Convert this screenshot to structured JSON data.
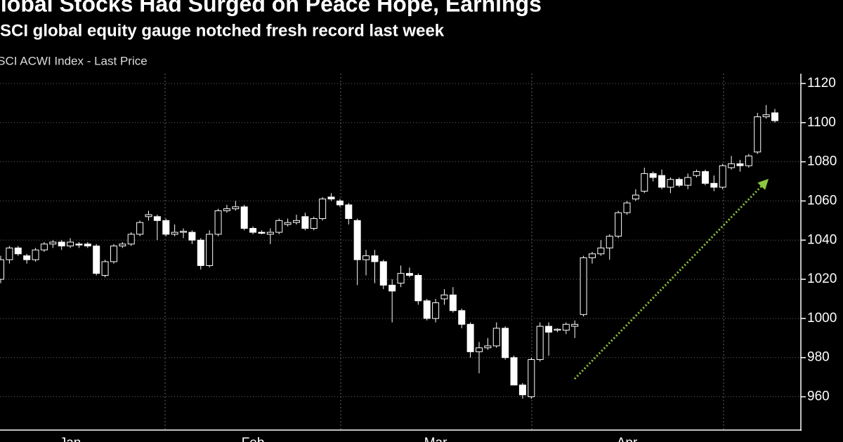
{
  "chart_data": {
    "type": "candlestick",
    "title": "Global Stocks Had Surged on Peace Hope, Earnings",
    "subtitle": "MSCI global equity gauge notched fresh record last week",
    "series_name": "MSCI ACWI Index - Last Price",
    "color": "#ffffff",
    "categories": [
      null,
      null,
      null,
      null,
      null,
      null,
      null,
      null,
      "Jan",
      null,
      null,
      null,
      null,
      null,
      null,
      null,
      null,
      null,
      null,
      null,
      null,
      null,
      null,
      null,
      null,
      null,
      null,
      null,
      null,
      "Feb",
      null,
      null,
      null,
      null,
      null,
      null,
      null,
      null,
      null,
      null,
      null,
      null,
      null,
      null,
      null,
      null,
      null,
      null,
      null,
      null,
      "Mar",
      null,
      null,
      null,
      null,
      null,
      null,
      null,
      null,
      null,
      null,
      null,
      null,
      null,
      null,
      null,
      null,
      null,
      null,
      null,
      null,
      null,
      "Apr",
      null,
      null,
      null,
      null,
      null,
      null,
      null,
      null,
      null,
      null,
      null,
      null,
      null,
      null,
      null,
      null,
      null
    ],
    "open": [
      1020,
      1030,
      1036,
      1032,
      1030,
      1035,
      1038,
      1039,
      1037,
      1038,
      1038,
      1037,
      1022,
      1029,
      1037,
      1038,
      1043,
      1052,
      1052,
      1050,
      1043,
      1044,
      1044,
      1040,
      1027,
      1043,
      1055,
      1056,
      1057,
      1046,
      1044,
      1043,
      1044,
      1048,
      1049,
      1052,
      1046,
      1051,
      1062,
      1060,
      1058,
      1050,
      1030,
      1032,
      1029,
      1017,
      1018,
      1023,
      1022,
      1009,
      1000,
      1010,
      1012,
      1004,
      997,
      983,
      985,
      986,
      995,
      980,
      966,
      960,
      979,
      996,
      994,
      994,
      996,
      1002,
      1031,
      1033,
      1036,
      1042,
      1054,
      1061,
      1065,
      1074,
      1073,
      1067,
      1071,
      1068,
      1073,
      1075,
      1069,
      1067,
      1077,
      1079,
      1078,
      1085,
      1103,
      1105
    ],
    "high": [
      1032,
      1037,
      1037,
      1033,
      1036,
      1039,
      1040,
      1040,
      1041,
      1039,
      1039,
      1038,
      1030,
      1038,
      1039,
      1044,
      1050,
      1055,
      1053,
      1051,
      1048,
      1046,
      1045,
      1041,
      1045,
      1056,
      1058,
      1060,
      1058,
      1047,
      1045,
      1046,
      1051,
      1051,
      1053,
      1054,
      1052,
      1062,
      1064,
      1061,
      1059,
      1051,
      1035,
      1035,
      1030,
      1020,
      1027,
      1026,
      1023,
      1010,
      1010,
      1015,
      1016,
      1005,
      998,
      988,
      990,
      998,
      996,
      981,
      967,
      980,
      998,
      998,
      995,
      998,
      999,
      1032,
      1034,
      1040,
      1043,
      1055,
      1060,
      1066,
      1077,
      1075,
      1076,
      1072,
      1072,
      1074,
      1076,
      1076,
      1073,
      1079,
      1083,
      1081,
      1084,
      1105,
      1109,
      1107
    ],
    "low": [
      1018,
      1028,
      1032,
      1028,
      1029,
      1034,
      1036,
      1035,
      1036,
      1036,
      1036,
      1022,
      1021,
      1028,
      1036,
      1037,
      1042,
      1050,
      1040,
      1042,
      1042,
      1041,
      1038,
      1025,
      1026,
      1042,
      1054,
      1055,
      1045,
      1043,
      1043,
      1038,
      1043,
      1047,
      1048,
      1045,
      1045,
      1050,
      1060,
      1057,
      1048,
      1017,
      1022,
      1018,
      1015,
      998,
      1016,
      1021,
      1007,
      999,
      998,
      1007,
      1003,
      995,
      980,
      972,
      984,
      985,
      979,
      966,
      959,
      959,
      978,
      981,
      993,
      992,
      990,
      1001,
      1028,
      1032,
      1030,
      1041,
      1053,
      1060,
      1064,
      1070,
      1066,
      1064,
      1067,
      1066,
      1072,
      1068,
      1065,
      1066,
      1076,
      1075,
      1077,
      1084,
      1102,
      1100
    ],
    "close": [
      1030,
      1036,
      1033,
      1030,
      1035,
      1038,
      1039,
      1037,
      1039,
      1037.5,
      1037,
      1023,
      1029,
      1037,
      1038,
      1043,
      1049,
      1053,
      1050,
      1043,
      1044,
      1044.5,
      1040,
      1027,
      1043,
      1055,
      1056,
      1057,
      1046,
      1044,
      1043.5,
      1044,
      1050,
      1049,
      1050,
      1046,
      1051,
      1061,
      1061,
      1058,
      1051,
      1030,
      1032,
      1029,
      1017,
      1014,
      1023,
      1022,
      1009,
      1000,
      1008,
      1012,
      1004,
      997,
      983,
      985,
      986,
      995,
      980,
      966,
      961,
      979,
      996,
      993,
      994.5,
      997,
      997,
      1031,
      1033,
      1036,
      1042,
      1054,
      1059,
      1063,
      1074,
      1072,
      1067,
      1071,
      1068,
      1072,
      1075,
      1069,
      1067,
      1078,
      1079,
      1078,
      1083,
      1103,
      1104,
      1101
    ],
    "ylim": [
      943,
      1125
    ],
    "yticks": [
      960,
      980,
      1000,
      1020,
      1040,
      1060,
      1080,
      1100,
      1120
    ],
    "grid": true
  }
}
